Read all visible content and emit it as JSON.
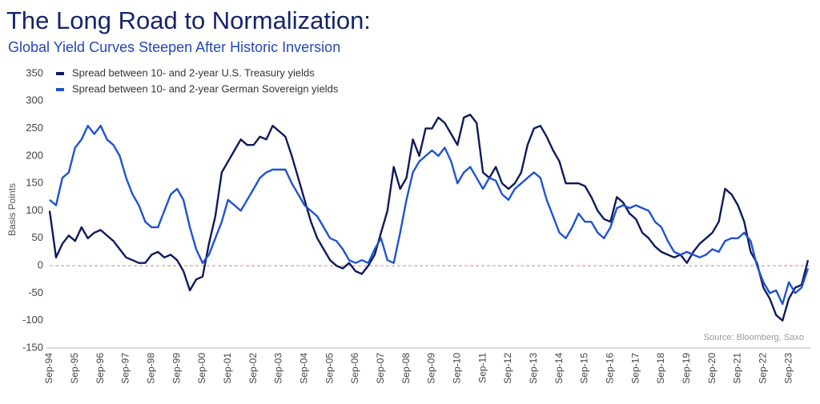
{
  "chart_data": {
    "type": "line",
    "title": "The Long Road to Normalization:",
    "subtitle": "Global Yield Curves Steepen After Historic Inversion",
    "y_label": "Basis Points",
    "source": "Source: Bloomberg, Saxo",
    "ylim": [
      -150,
      350
    ],
    "yticks": [
      -150,
      -100,
      -50,
      0,
      50,
      100,
      150,
      200,
      250,
      300,
      350
    ],
    "legend": "top-left",
    "categories": [
      "Sep-94",
      null,
      null,
      null,
      "Sep-95",
      null,
      null,
      null,
      "Sep-96",
      null,
      null,
      null,
      "Sep-97",
      null,
      null,
      null,
      "Sep-98",
      null,
      null,
      null,
      "Sep-99",
      null,
      null,
      null,
      "Sep-00",
      null,
      null,
      null,
      "Sep-01",
      null,
      null,
      null,
      "Sep-02",
      null,
      null,
      null,
      "Sep-03",
      null,
      null,
      null,
      "Sep-04",
      null,
      null,
      null,
      "Sep-05",
      null,
      null,
      null,
      "Sep-06",
      null,
      null,
      null,
      "Sep-07",
      null,
      null,
      null,
      "Sep-08",
      null,
      null,
      null,
      "Sep-09",
      null,
      null,
      null,
      "Sep-10",
      null,
      null,
      null,
      "Sep-11",
      null,
      null,
      null,
      "Sep-12",
      null,
      null,
      null,
      "Sep-13",
      null,
      null,
      null,
      "Sep-14",
      null,
      null,
      null,
      "Sep-15",
      null,
      null,
      null,
      "Sep-16",
      null,
      null,
      null,
      "Sep-17",
      null,
      null,
      null,
      "Sep-18",
      null,
      null,
      null,
      "Sep-19",
      null,
      null,
      null,
      "Sep-20",
      null,
      null,
      null,
      "Sep-21",
      null,
      null,
      null,
      "Sep-22",
      null,
      null,
      null,
      "Sep-23",
      null,
      null,
      null
    ],
    "series": [
      {
        "name": "Spread between 10- and 2-year U.S. Treasury yields",
        "color": "#0e1a5c",
        "values": [
          100,
          15,
          40,
          55,
          45,
          70,
          50,
          60,
          65,
          55,
          45,
          30,
          15,
          10,
          5,
          5,
          20,
          25,
          15,
          20,
          10,
          -10,
          -45,
          -25,
          -20,
          40,
          90,
          170,
          190,
          210,
          230,
          220,
          220,
          235,
          230,
          255,
          245,
          235,
          200,
          160,
          120,
          80,
          50,
          30,
          10,
          0,
          -5,
          5,
          -10,
          -15,
          0,
          20,
          60,
          100,
          180,
          140,
          160,
          230,
          200,
          250,
          250,
          270,
          260,
          240,
          220,
          270,
          275,
          260,
          170,
          160,
          180,
          150,
          140,
          150,
          170,
          220,
          250,
          255,
          235,
          210,
          190,
          150,
          150,
          150,
          145,
          125,
          100,
          85,
          80,
          125,
          115,
          95,
          85,
          60,
          50,
          35,
          25,
          20,
          15,
          20,
          5,
          25,
          40,
          50,
          60,
          80,
          140,
          130,
          110,
          80,
          25,
          5,
          -40,
          -60,
          -90,
          -100,
          -60,
          -40,
          -35,
          10
        ]
      },
      {
        "name": "Spread between 10- and 2-year German Sovereign yields",
        "color": "#1f52d3",
        "values": [
          120,
          110,
          160,
          170,
          215,
          230,
          255,
          240,
          255,
          230,
          220,
          200,
          160,
          130,
          110,
          80,
          70,
          70,
          100,
          130,
          140,
          120,
          70,
          30,
          5,
          20,
          50,
          80,
          120,
          110,
          100,
          120,
          140,
          160,
          170,
          175,
          175,
          175,
          150,
          130,
          110,
          100,
          90,
          70,
          50,
          45,
          30,
          10,
          5,
          10,
          5,
          30,
          50,
          10,
          5,
          60,
          120,
          170,
          190,
          200,
          210,
          200,
          215,
          190,
          150,
          170,
          180,
          160,
          140,
          160,
          155,
          130,
          120,
          140,
          150,
          160,
          170,
          160,
          120,
          90,
          60,
          50,
          70,
          95,
          80,
          80,
          60,
          50,
          70,
          105,
          110,
          105,
          110,
          105,
          100,
          80,
          70,
          45,
          25,
          20,
          25,
          20,
          15,
          20,
          30,
          25,
          45,
          50,
          50,
          60,
          45,
          0,
          -30,
          -50,
          -45,
          -70,
          -30,
          -50,
          -40,
          -5
        ]
      }
    ]
  }
}
